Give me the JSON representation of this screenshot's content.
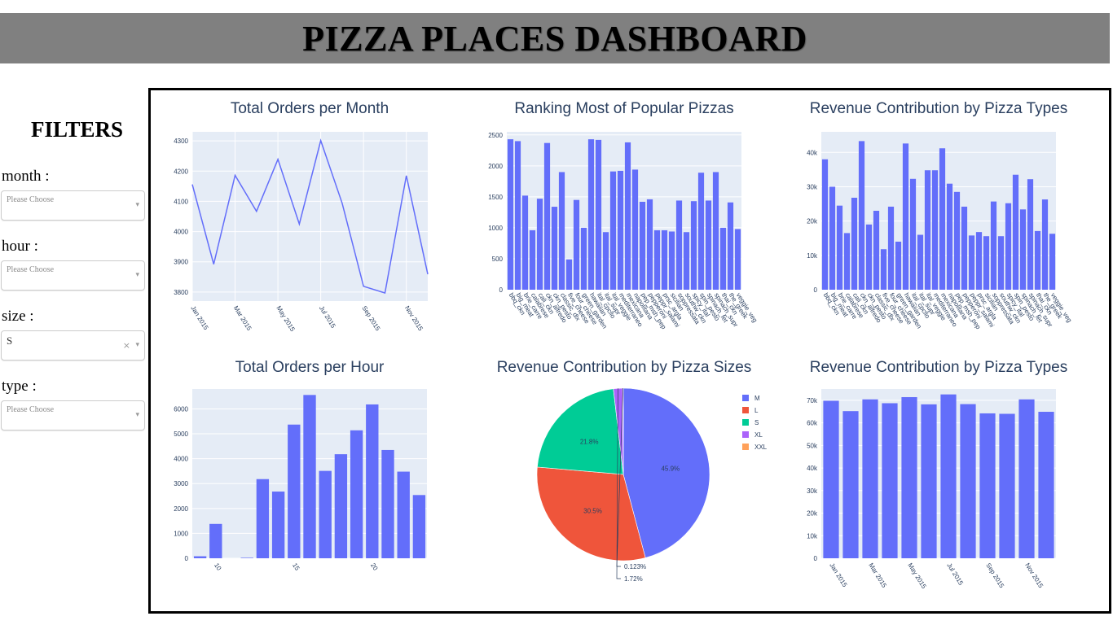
{
  "header": {
    "title": "PIZZA PLACES DASHBOARD"
  },
  "filters": {
    "heading": "FILTERS",
    "items": [
      {
        "label": "month :",
        "value": "Please Choose",
        "filled": false
      },
      {
        "label": "hour :",
        "value": "Please Choose",
        "filled": false
      },
      {
        "label": "size :",
        "value": "S",
        "filled": true,
        "clear": "×"
      },
      {
        "label": "type :",
        "value": "Please Choose",
        "filled": false
      }
    ],
    "caret": "▾"
  },
  "colors": {
    "bar": "#636efa",
    "plot_bg": "#e5ecf6",
    "title": "#2a3f5f"
  },
  "chart_data": [
    {
      "id": "orders_month",
      "type": "line",
      "title": "Total Orders per Month",
      "x": [
        "Jan 2015",
        "Feb 2015",
        "Mar 2015",
        "Apr 2015",
        "May 2015",
        "Jun 2015",
        "Jul 2015",
        "Aug 2015",
        "Sep 2015",
        "Oct 2015",
        "Nov 2015",
        "Dec 2015"
      ],
      "values": [
        4156,
        3892,
        4186,
        4067,
        4239,
        4025,
        4301,
        4094,
        3819,
        3797,
        4185,
        3859
      ],
      "x_ticks": [
        "Jan 2015",
        "Mar 2015",
        "May 2015",
        "Jul 2015",
        "Sep 2015",
        "Nov 2015"
      ],
      "y_ticks": [
        3800,
        3900,
        4000,
        4100,
        4200,
        4300
      ],
      "ylim": [
        3770,
        4330
      ],
      "grid": true
    },
    {
      "id": "popular_pizzas",
      "type": "bar",
      "title": "Ranking Most of Popular Pizzas",
      "categories": [
        "bbq_ckn",
        "big_meat",
        "brie_carre",
        "calabrese",
        "cali_ckn",
        "ckn_alfredo",
        "ckn_pesto",
        "classic_dlx",
        "five_cheese",
        "four_cheese",
        "green_garden",
        "hawaiian",
        "ital_cpcllo",
        "ital_supr",
        "ital_veggie",
        "mediterraneo",
        "mexicana",
        "napolitana",
        "pep_msh_pep",
        "pepperoni",
        "peppr_salami",
        "prsc_argla",
        "sicilian",
        "soppressata",
        "southw_ckn",
        "spicy_ital",
        "spin_pesto",
        "spinach_fet",
        "spinach_supr",
        "thai_ckn",
        "the_greek",
        "veggie_veg"
      ],
      "values": [
        2430,
        2400,
        1520,
        960,
        1470,
        2370,
        1340,
        1900,
        490,
        1450,
        1000,
        2430,
        2420,
        930,
        1910,
        1920,
        2380,
        1940,
        1420,
        1460,
        960,
        960,
        940,
        1440,
        930,
        1430,
        1890,
        1440,
        1900,
        1000,
        1410,
        980
      ],
      "y_ticks": [
        0,
        500,
        1000,
        1500,
        2000,
        2500
      ],
      "ylim": [
        0,
        2550
      ]
    },
    {
      "id": "revenue_types",
      "type": "bar",
      "title": "Revenue Contribution by Pizza Types",
      "categories": [
        "bbq_ckn",
        "big_meat",
        "brie_carre",
        "calabrese",
        "cali_ckn",
        "ckn_alfredo",
        "ckn_pesto",
        "classic_dlx",
        "five_cheese",
        "four_cheese",
        "green_garden",
        "hawaiian",
        "ital_cpcllo",
        "ital_supr",
        "ital_veggie",
        "mediterraneo",
        "mexicana",
        "napolitana",
        "pep_msh_pep",
        "pepperoni",
        "peppr_salami",
        "prsc_argla",
        "sicilian",
        "soppressata",
        "southw_ckn",
        "spicy_ital",
        "spin_pesto",
        "spinach_fet",
        "spinach_supr",
        "thai_ckn",
        "the_greek",
        "veggie_veg"
      ],
      "values": [
        38000,
        30000,
        24500,
        16500,
        26800,
        43300,
        19000,
        23000,
        11800,
        24200,
        14000,
        42600,
        32300,
        16000,
        34800,
        34800,
        41200,
        30900,
        28500,
        24200,
        15800,
        16800,
        15600,
        25700,
        15600,
        25200,
        33500,
        23400,
        32200,
        17100,
        26300,
        16300
      ],
      "y_ticks": [
        0,
        10000,
        20000,
        30000,
        40000
      ],
      "y_tick_labels": [
        "0",
        "10k",
        "20k",
        "30k",
        "40k"
      ],
      "ylim": [
        0,
        46000
      ]
    },
    {
      "id": "orders_hour",
      "type": "bar",
      "title": "Total Orders per Hour",
      "categories": [
        9,
        10,
        11,
        12,
        13,
        14,
        15,
        16,
        17,
        18,
        19,
        20,
        21,
        22,
        23
      ],
      "values": [
        80,
        1380,
        0,
        20,
        3180,
        2680,
        5370,
        6560,
        3510,
        4180,
        5140,
        6180,
        4350,
        3480,
        2540
      ],
      "x_ticks": [
        10,
        15,
        20
      ],
      "y_ticks": [
        0,
        1000,
        2000,
        3000,
        4000,
        5000,
        6000
      ],
      "ylim": [
        0,
        6800
      ]
    },
    {
      "id": "revenue_sizes",
      "type": "pie",
      "title": "Revenue Contribution by Pizza Sizes",
      "labels": [
        "M",
        "L",
        "S",
        "XL",
        "XXL"
      ],
      "values": [
        45.9,
        30.5,
        21.8,
        1.72,
        0.123
      ],
      "display_labels": [
        "45.9%",
        "30.5%",
        "21.8%",
        "1.72%",
        "0.123%"
      ],
      "colors": [
        "#636efa",
        "#ef553b",
        "#00cc96",
        "#ab63fa",
        "#ffa15a"
      ],
      "legend": "right"
    },
    {
      "id": "revenue_month",
      "type": "bar",
      "title": "Revenue Contribution by Pizza Types",
      "categories": [
        "Jan 2015",
        "Feb 2015",
        "Mar 2015",
        "Apr 2015",
        "May 2015",
        "Jun 2015",
        "Jul 2015",
        "Aug 2015",
        "Sep 2015",
        "Oct 2015",
        "Nov 2015",
        "Dec 2015"
      ],
      "values": [
        69800,
        65200,
        70400,
        68700,
        71400,
        68200,
        72600,
        68300,
        64200,
        64000,
        70400,
        64900
      ],
      "x_ticks": [
        "Jan 2015",
        "Mar 2015",
        "May 2015",
        "Jul 2015",
        "Sep 2015",
        "Nov 2015"
      ],
      "y_ticks": [
        0,
        10000,
        20000,
        30000,
        40000,
        50000,
        60000,
        70000
      ],
      "y_tick_labels": [
        "0",
        "10k",
        "20k",
        "30k",
        "40k",
        "50k",
        "60k",
        "70k"
      ],
      "ylim": [
        0,
        75000
      ]
    }
  ]
}
